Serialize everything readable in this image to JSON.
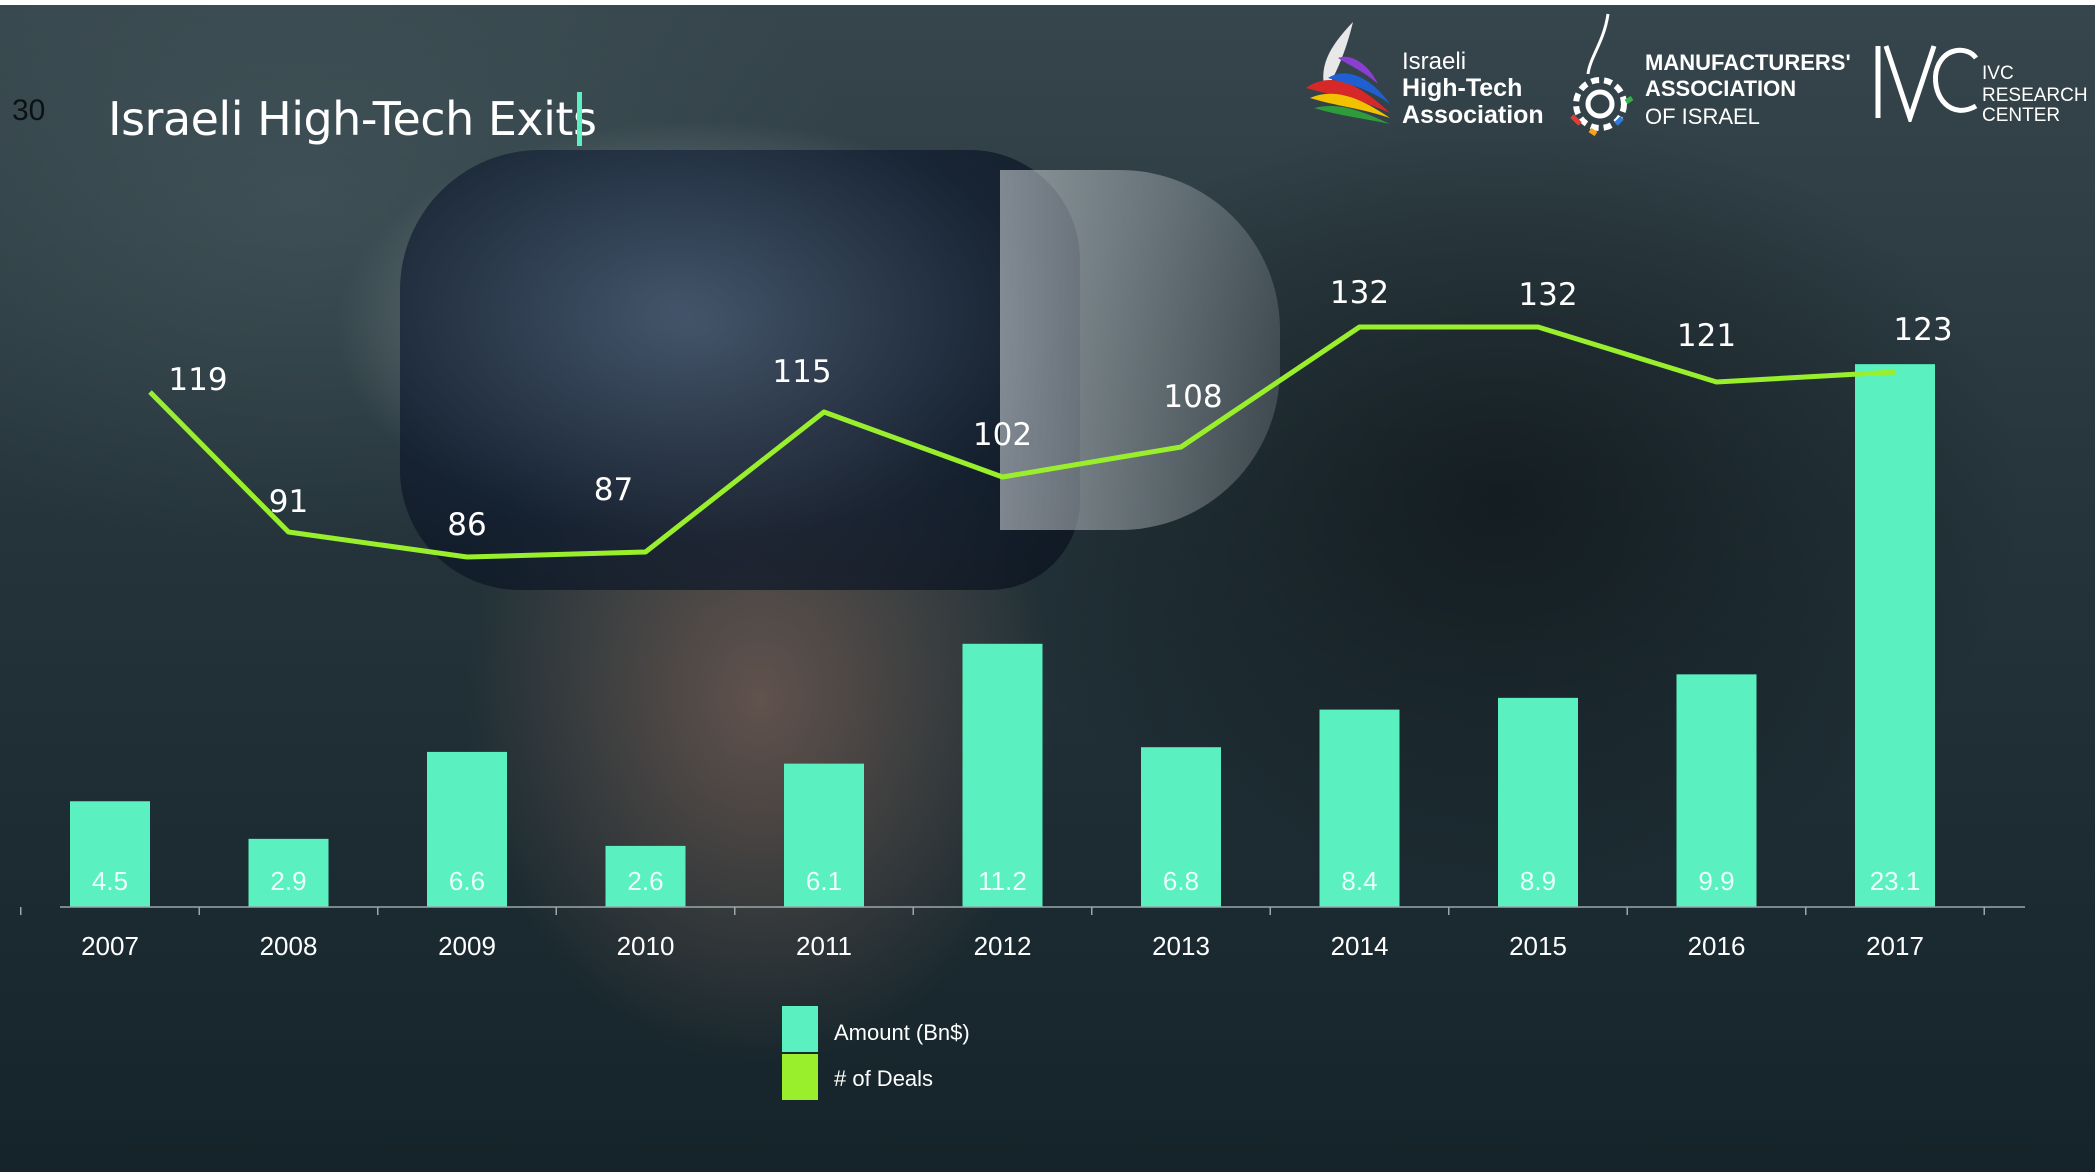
{
  "page_number": "30",
  "title": "Israeli High-Tech Exits",
  "logos": {
    "iha": {
      "line1": "Israeli",
      "line2": "High-Tech",
      "line3": "Association",
      "icon": "flame-ribbon-logo"
    },
    "mai": {
      "line1": "MANUFACTURERS'",
      "line2": "ASSOCIATION",
      "line3": "OF ISRAEL",
      "icon": "gear-drop-logo"
    },
    "ivc": {
      "line1": "IVC",
      "line2": "RESEARCH",
      "line3": "CENTER",
      "icon": "ivc-monogram-logo"
    }
  },
  "colors": {
    "bar": "#5af0c0",
    "line": "#9aef2c",
    "accent": "#5af0c0"
  },
  "chart_data": {
    "type": "bar",
    "categories": [
      "2007",
      "2008",
      "2009",
      "2010",
      "2011",
      "2012",
      "2013",
      "2014",
      "2015",
      "2016",
      "2017"
    ],
    "series": [
      {
        "name": "Amount (Bn$)",
        "type": "bar",
        "values": [
          4.5,
          2.9,
          6.6,
          2.6,
          6.1,
          11.2,
          6.8,
          8.4,
          8.9,
          9.9,
          23.1
        ]
      },
      {
        "name": "# of Deals",
        "type": "line",
        "values": [
          119,
          91,
          86,
          87,
          115,
          102,
          108,
          132,
          132,
          121,
          123
        ]
      }
    ],
    "legend": "bottom-center"
  }
}
